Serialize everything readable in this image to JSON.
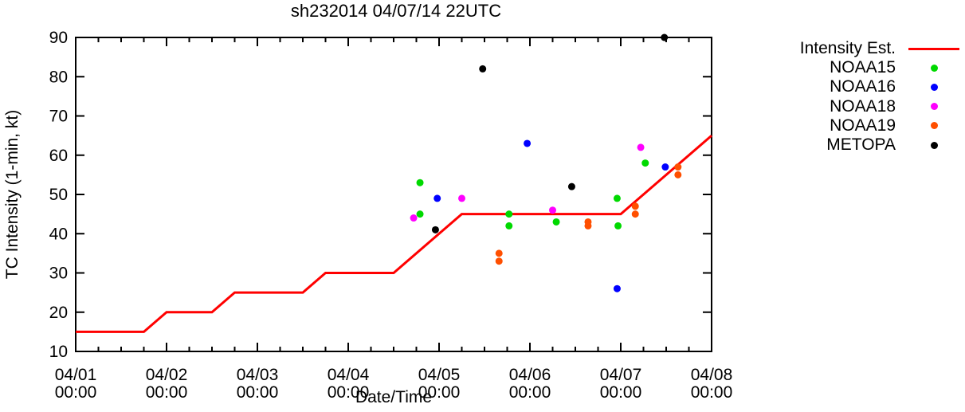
{
  "chart_data": {
    "type": "line+scatter",
    "title": "sh232014 04/07/14 22UTC",
    "xlabel": "Date/Time",
    "ylabel": "TC Intensity (1-min, kt)",
    "x_axis": {
      "tick_dates": [
        "04/01",
        "04/02",
        "04/03",
        "04/04",
        "04/05",
        "04/06",
        "04/07",
        "04/08"
      ],
      "tick_time": "00:00",
      "range_days": [
        0,
        7
      ],
      "minor_tick_hours": 6
    },
    "y_axis": {
      "ticks": [
        10,
        20,
        30,
        40,
        50,
        60,
        70,
        80,
        90
      ],
      "range": [
        10,
        90
      ]
    },
    "intensity_line": {
      "label": "Intensity Est.",
      "color": "#ff0000",
      "points_t_kt": [
        [
          0,
          15
        ],
        [
          0.75,
          15
        ],
        [
          1,
          20
        ],
        [
          1.5,
          20
        ],
        [
          1.75,
          25
        ],
        [
          2.5,
          25
        ],
        [
          2.75,
          30
        ],
        [
          3.5,
          30
        ],
        [
          4.25,
          45
        ],
        [
          6,
          45
        ],
        [
          7,
          65
        ]
      ]
    },
    "series": [
      {
        "label": "NOAA15",
        "color": "#00d900",
        "points_t_kt": [
          [
            3.79,
            53
          ],
          [
            3.79,
            45
          ],
          [
            4.77,
            45
          ],
          [
            4.77,
            42
          ],
          [
            5.29,
            43
          ],
          [
            5.96,
            49
          ],
          [
            5.97,
            42
          ],
          [
            6.27,
            58
          ]
        ]
      },
      {
        "label": "NOAA16",
        "color": "#0000ff",
        "points_t_kt": [
          [
            3.98,
            49
          ],
          [
            4.97,
            63
          ],
          [
            5.96,
            26
          ],
          [
            6.49,
            57
          ]
        ]
      },
      {
        "label": "NOAA18",
        "color": "#ff00ff",
        "points_t_kt": [
          [
            3.72,
            44
          ],
          [
            4.25,
            49
          ],
          [
            5.25,
            46
          ],
          [
            6.22,
            62
          ]
        ]
      },
      {
        "label": "NOAA19",
        "color": "#ff4f00",
        "points_t_kt": [
          [
            4.66,
            35
          ],
          [
            4.66,
            33
          ],
          [
            5.64,
            43
          ],
          [
            5.64,
            42
          ],
          [
            6.16,
            47
          ],
          [
            6.16,
            45
          ],
          [
            6.63,
            57
          ],
          [
            6.63,
            55
          ]
        ]
      },
      {
        "label": "METOPA",
        "color": "#000000",
        "points_t_kt": [
          [
            3.96,
            41
          ],
          [
            4.48,
            82
          ],
          [
            5.46,
            52
          ],
          [
            6.48,
            90
          ]
        ]
      }
    ],
    "legend": {
      "position": "outside-top-right"
    },
    "grid": false,
    "axis_color": "#000000"
  }
}
